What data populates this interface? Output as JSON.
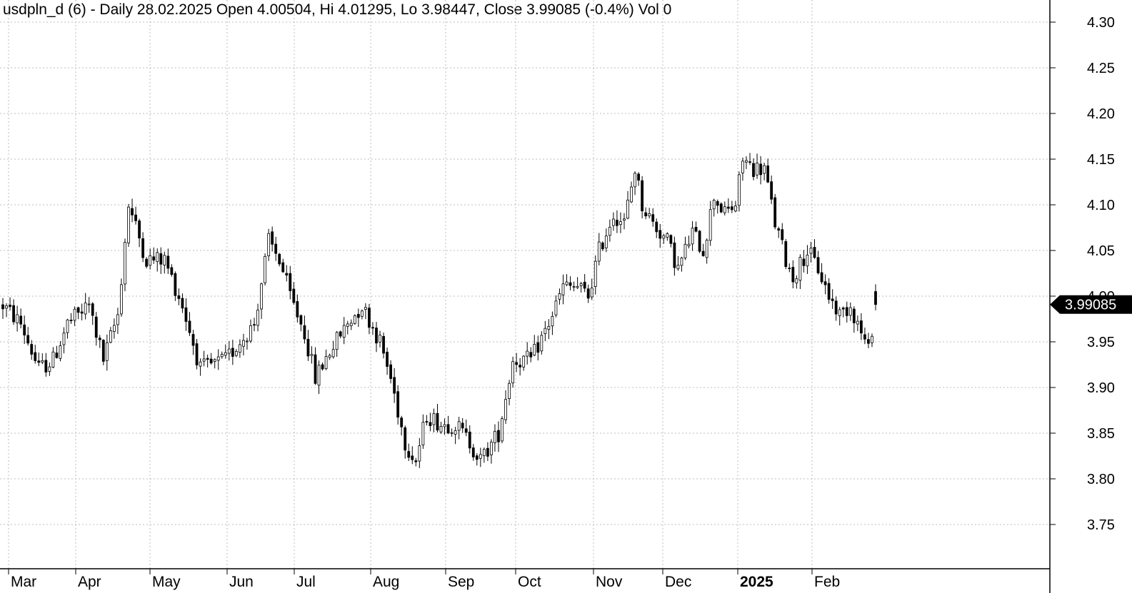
{
  "header": {
    "title": "usdpln_d (6) - Daily 28.02.2025 Open 4.00504, Hi 4.01295, Lo 3.98447, Close 3.99085 (-0.4%) Vol 0"
  },
  "chart_data": {
    "type": "candlestick",
    "title": "usdpln_d (6) - Daily 28.02.2025 Open 4.00504, Hi 4.01295, Lo 3.98447, Close 3.99085 (-0.4%) Vol 0",
    "xlabel": "",
    "ylabel": "",
    "ylim": [
      3.7,
      4.32
    ],
    "y_ticks": [
      4.3,
      4.25,
      4.2,
      4.15,
      4.1,
      4.05,
      4.0,
      3.95,
      3.9,
      3.85,
      3.8,
      3.75
    ],
    "x_ticks": [
      {
        "label": "Mar",
        "bold": false
      },
      {
        "label": "Apr",
        "bold": false
      },
      {
        "label": "May",
        "bold": false
      },
      {
        "label": "Jun",
        "bold": false
      },
      {
        "label": "Jul",
        "bold": false
      },
      {
        "label": "Aug",
        "bold": false
      },
      {
        "label": "Sep",
        "bold": false
      },
      {
        "label": "Oct",
        "bold": false
      },
      {
        "label": "Nov",
        "bold": false
      },
      {
        "label": "Dec",
        "bold": false
      },
      {
        "label": "2025",
        "bold": true
      },
      {
        "label": "Feb",
        "bold": false
      }
    ],
    "last_close_label": "3.99085",
    "last_close": 3.99085,
    "grid": true,
    "waypoints": [
      [
        0,
        3.99
      ],
      [
        5,
        3.97
      ],
      [
        10,
        3.92
      ],
      [
        14,
        3.93
      ],
      [
        18,
        3.97
      ],
      [
        24,
        3.99
      ],
      [
        28,
        3.93
      ],
      [
        32,
        3.98
      ],
      [
        35,
        4.1
      ],
      [
        40,
        4.04
      ],
      [
        45,
        4.04
      ],
      [
        50,
        3.99
      ],
      [
        55,
        3.92
      ],
      [
        62,
        3.93
      ],
      [
        66,
        3.95
      ],
      [
        70,
        3.97
      ],
      [
        74,
        4.06
      ],
      [
        77,
        4.04
      ],
      [
        80,
        4.0
      ],
      [
        84,
        3.96
      ],
      [
        87,
        3.91
      ],
      [
        91,
        3.94
      ],
      [
        96,
        3.97
      ],
      [
        100,
        3.99
      ],
      [
        105,
        3.95
      ],
      [
        108,
        3.91
      ],
      [
        112,
        3.84
      ],
      [
        115,
        3.82
      ],
      [
        118,
        3.87
      ],
      [
        122,
        3.86
      ],
      [
        126,
        3.86
      ],
      [
        130,
        3.84
      ],
      [
        133,
        3.82
      ],
      [
        138,
        3.85
      ],
      [
        142,
        3.93
      ],
      [
        147,
        3.93
      ],
      [
        152,
        3.97
      ],
      [
        156,
        4.01
      ],
      [
        160,
        4.01
      ],
      [
        163,
        4.0
      ],
      [
        166,
        4.05
      ],
      [
        170,
        4.09
      ],
      [
        173,
        4.08
      ],
      [
        176,
        4.14
      ],
      [
        178,
        4.1
      ],
      [
        181,
        4.08
      ],
      [
        185,
        4.06
      ],
      [
        188,
        4.03
      ],
      [
        192,
        4.07
      ],
      [
        195,
        4.05
      ],
      [
        198,
        4.11
      ],
      [
        201,
        4.09
      ],
      [
        204,
        4.1
      ],
      [
        206,
        4.15
      ],
      [
        209,
        4.14
      ],
      [
        212,
        4.14
      ],
      [
        215,
        4.08
      ],
      [
        218,
        4.04
      ],
      [
        220,
        4.02
      ],
      [
        224,
        4.05
      ],
      [
        227,
        4.03
      ],
      [
        230,
        4.0
      ],
      [
        233,
        3.98
      ],
      [
        236,
        3.99
      ],
      [
        239,
        3.96
      ],
      [
        241,
        3.94
      ],
      [
        243,
        3.99
      ]
    ]
  }
}
